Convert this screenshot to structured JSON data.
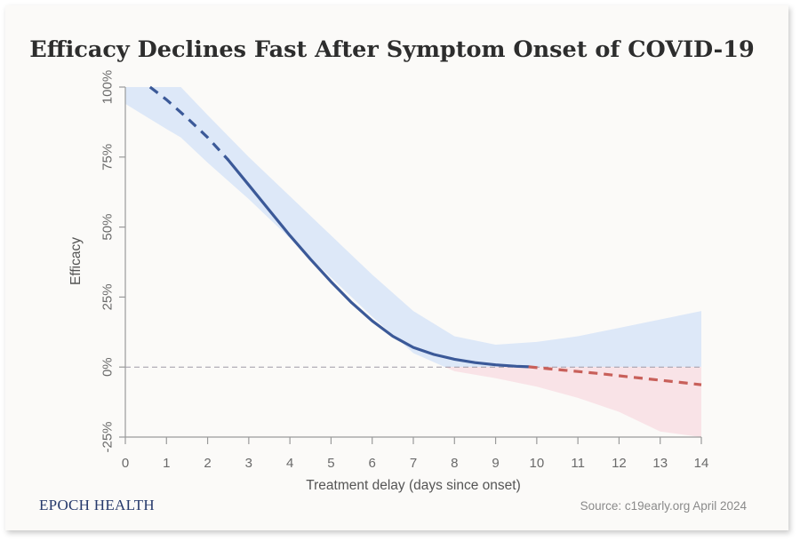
{
  "chart_data": {
    "type": "line",
    "title": "Efficacy Declines Fast After Symptom Onset of COVID-19",
    "xlabel": "Treatment delay (days since onset)",
    "ylabel": "Efficacy",
    "x_ticks": [
      "0",
      "1",
      "2",
      "3",
      "4",
      "5",
      "6",
      "7",
      "8",
      "9",
      "10",
      "11",
      "12",
      "13",
      "14"
    ],
    "y_ticks": [
      "100%",
      "75%",
      "50%",
      "25%",
      "0%",
      "-25%"
    ],
    "xlim": [
      0,
      14
    ],
    "ylim": [
      -25,
      100
    ],
    "reference_line": 0,
    "series": [
      {
        "name": "efficacy_estimate",
        "x": [
          0.6,
          1.0,
          1.5,
          2.0,
          2.5,
          3.0,
          3.5,
          4.0,
          4.5,
          5.0,
          5.5,
          6.0,
          6.5,
          7.0,
          7.5,
          8.0,
          8.5,
          9.0,
          9.5,
          9.8
        ],
        "y": [
          100,
          95.5,
          89,
          82,
          74,
          65,
          56,
          47,
          38.5,
          30.5,
          23,
          16.5,
          11,
          7,
          4.5,
          2.8,
          1.6,
          0.8,
          0.3,
          0.1
        ],
        "dashed_before_x": 2.5
      },
      {
        "name": "negative_extrapolation",
        "x": [
          9.8,
          10.5,
          11,
          11.5,
          12,
          12.5,
          13,
          13.5,
          14
        ],
        "y": [
          0.1,
          -0.9,
          -1.6,
          -2.3,
          -3.1,
          -3.9,
          -4.7,
          -5.5,
          -6.3
        ],
        "dashed": true
      }
    ],
    "confidence_band": {
      "x": [
        0,
        1,
        1.35,
        2,
        3,
        4,
        5,
        6,
        7,
        8,
        9,
        10,
        11,
        12,
        13,
        14
      ],
      "upper": [
        100,
        100,
        100,
        90,
        75,
        61,
        47,
        33,
        20,
        11,
        8,
        9,
        11,
        14,
        17,
        20
      ],
      "lower": [
        94,
        85,
        82,
        73,
        60,
        46,
        32,
        18,
        5,
        -1.5,
        -4,
        -7,
        -11,
        -16,
        -23,
        -25
      ]
    },
    "colors": {
      "line": "#3b5998",
      "negative": "#c8605a",
      "band_positive": "#dde8f8",
      "band_negative": "#f9e3e7",
      "axis": "#9a9a9a",
      "zero_line": "#a09aa6"
    }
  },
  "footer": {
    "brand": "EPOCH HEALTH",
    "source": "Source: c19early.org April 2024"
  }
}
